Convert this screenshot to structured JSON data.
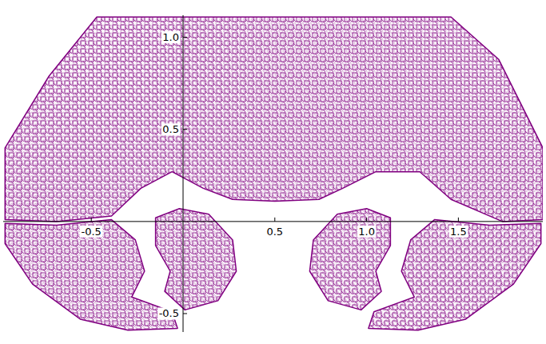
{
  "chart_data": {
    "type": "polygon",
    "color": "#800080",
    "series": [
      {
        "x": [
          -0.47,
          1.46,
          1.72,
          1.96,
          1.96,
          1.74,
          1.46,
          1.29,
          1.05,
          0.87,
          0.74,
          0.5,
          0.27,
          0.11,
          -0.06,
          -0.23,
          -0.39,
          -0.69,
          -0.97,
          -0.97,
          -0.73
        ],
        "values": [
          1.11,
          1.11,
          0.88,
          0.4,
          0.01,
          0.0,
          0.12,
          0.27,
          0.27,
          0.18,
          0.12,
          0.11,
          0.12,
          0.18,
          0.27,
          0.18,
          0.03,
          0.0,
          0.01,
          0.4,
          0.79
        ]
      },
      {
        "x": [
          -0.97,
          -0.69,
          -0.39,
          -0.26,
          -0.21,
          -0.28,
          -0.06,
          -0.03,
          -0.3,
          -0.56,
          -0.82,
          -0.97
        ],
        "values": [
          -0.01,
          -0.02,
          0.01,
          -0.1,
          -0.27,
          -0.41,
          -0.49,
          -0.58,
          -0.59,
          -0.53,
          -0.34,
          -0.12
        ]
      },
      {
        "x": [
          -0.15,
          -0.02,
          0.14,
          0.27,
          0.29,
          0.19,
          0.01,
          -0.1,
          -0.07,
          -0.15
        ],
        "values": [
          0.02,
          0.07,
          0.04,
          -0.1,
          -0.27,
          -0.43,
          -0.48,
          -0.38,
          -0.27,
          -0.13
        ]
      },
      {
        "x": [
          1.13,
          1.0,
          0.84,
          0.71,
          0.69,
          0.79,
          0.97,
          1.08,
          1.05,
          1.13
        ],
        "values": [
          0.02,
          0.07,
          0.04,
          -0.1,
          -0.27,
          -0.43,
          -0.48,
          -0.38,
          -0.27,
          -0.13
        ]
      },
      {
        "x": [
          1.95,
          1.67,
          1.37,
          1.24,
          1.19,
          1.26,
          1.04,
          1.01,
          1.28,
          1.54,
          1.8,
          1.95
        ],
        "values": [
          -0.01,
          -0.02,
          0.01,
          -0.1,
          -0.27,
          -0.41,
          -0.49,
          -0.58,
          -0.59,
          -0.53,
          -0.34,
          -0.12
        ]
      }
    ],
    "xlim": [
      -0.98,
      1.96
    ],
    "ylim": [
      -0.6,
      1.12
    ],
    "xticks": [
      -0.5,
      0.5,
      {
        "value": 1,
        "label": "1.0"
      },
      1.5
    ],
    "yticks": [
      -0.5,
      0.5,
      {
        "value": 1,
        "label": "1.0"
      }
    ]
  }
}
